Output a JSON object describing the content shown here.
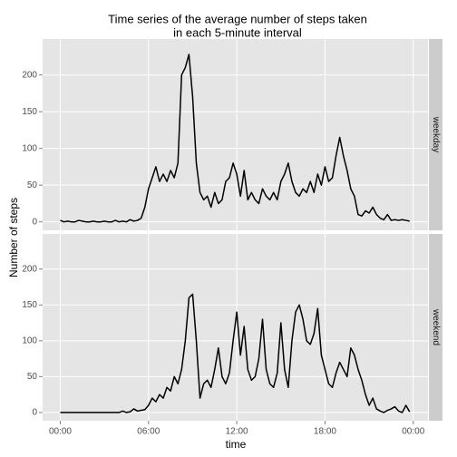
{
  "chart_data": {
    "type": "line",
    "title": [
      "Time series of  the average number of steps taken",
      "in each 5-minute interval"
    ],
    "xlabel": "time",
    "ylabel": "Number of steps",
    "x": [
      0,
      0.25,
      0.5,
      0.75,
      1,
      1.25,
      1.5,
      1.75,
      2,
      2.25,
      2.5,
      2.75,
      3,
      3.25,
      3.5,
      3.75,
      4,
      4.25,
      4.5,
      4.75,
      5,
      5.25,
      5.5,
      5.75,
      6,
      6.25,
      6.5,
      6.75,
      7,
      7.25,
      7.5,
      7.75,
      8,
      8.25,
      8.5,
      8.75,
      9,
      9.25,
      9.5,
      9.75,
      10,
      10.25,
      10.5,
      10.75,
      11,
      11.25,
      11.5,
      11.75,
      12,
      12.25,
      12.5,
      12.75,
      13,
      13.25,
      13.5,
      13.75,
      14,
      14.25,
      14.5,
      14.75,
      15,
      15.25,
      15.5,
      15.75,
      16,
      16.25,
      16.5,
      16.75,
      17,
      17.25,
      17.5,
      17.75,
      18,
      18.25,
      18.5,
      18.75,
      19,
      19.25,
      19.5,
      19.75,
      20,
      20.25,
      20.5,
      20.75,
      21,
      21.25,
      21.5,
      21.75,
      22,
      22.25,
      22.5,
      22.75,
      23,
      23.25,
      23.5,
      23.75
    ],
    "series": [
      {
        "name": "weekday",
        "color": "#000000",
        "values": [
          2,
          0,
          1,
          0,
          0,
          2,
          1,
          0,
          0,
          1,
          0,
          0,
          1,
          0,
          0,
          2,
          0,
          1,
          0,
          3,
          1,
          2,
          5,
          20,
          45,
          60,
          75,
          55,
          65,
          55,
          70,
          60,
          80,
          200,
          210,
          228,
          170,
          80,
          40,
          30,
          35,
          20,
          40,
          25,
          30,
          55,
          60,
          80,
          65,
          35,
          70,
          30,
          40,
          30,
          25,
          45,
          35,
          30,
          40,
          30,
          55,
          65,
          80,
          55,
          40,
          35,
          45,
          40,
          55,
          40,
          65,
          50,
          75,
          55,
          60,
          90,
          115,
          90,
          70,
          45,
          35,
          10,
          8,
          15,
          12,
          20,
          10,
          5,
          3,
          10,
          2,
          3,
          2,
          3,
          2,
          1
        ]
      },
      {
        "name": "weekend",
        "color": "#000000",
        "values": [
          0,
          0,
          0,
          0,
          0,
          0,
          0,
          0,
          0,
          0,
          0,
          0,
          0,
          0,
          0,
          0,
          0,
          2,
          0,
          1,
          5,
          2,
          3,
          4,
          10,
          20,
          15,
          25,
          20,
          35,
          30,
          50,
          40,
          60,
          100,
          160,
          165,
          100,
          20,
          40,
          45,
          35,
          60,
          90,
          50,
          40,
          55,
          100,
          140,
          80,
          120,
          60,
          45,
          50,
          75,
          130,
          60,
          40,
          35,
          55,
          125,
          60,
          35,
          100,
          140,
          150,
          130,
          100,
          95,
          110,
          145,
          80,
          60,
          40,
          35,
          55,
          70,
          60,
          50,
          90,
          80,
          60,
          45,
          25,
          10,
          20,
          5,
          2,
          0,
          3,
          5,
          8,
          2,
          0,
          10,
          1
        ]
      }
    ],
    "xlim": [
      -1.2,
      25.0
    ],
    "xticks": [
      {
        "value": 0,
        "label": "00:00"
      },
      {
        "value": 6,
        "label": "06:00"
      },
      {
        "value": 12,
        "label": "12:00"
      },
      {
        "value": 18,
        "label": "18:00"
      },
      {
        "value": 24,
        "label": "00:00"
      }
    ],
    "ylim": [
      -11.5,
      249
    ],
    "yticks": [
      0,
      50,
      100,
      150,
      200
    ],
    "grid": true
  }
}
